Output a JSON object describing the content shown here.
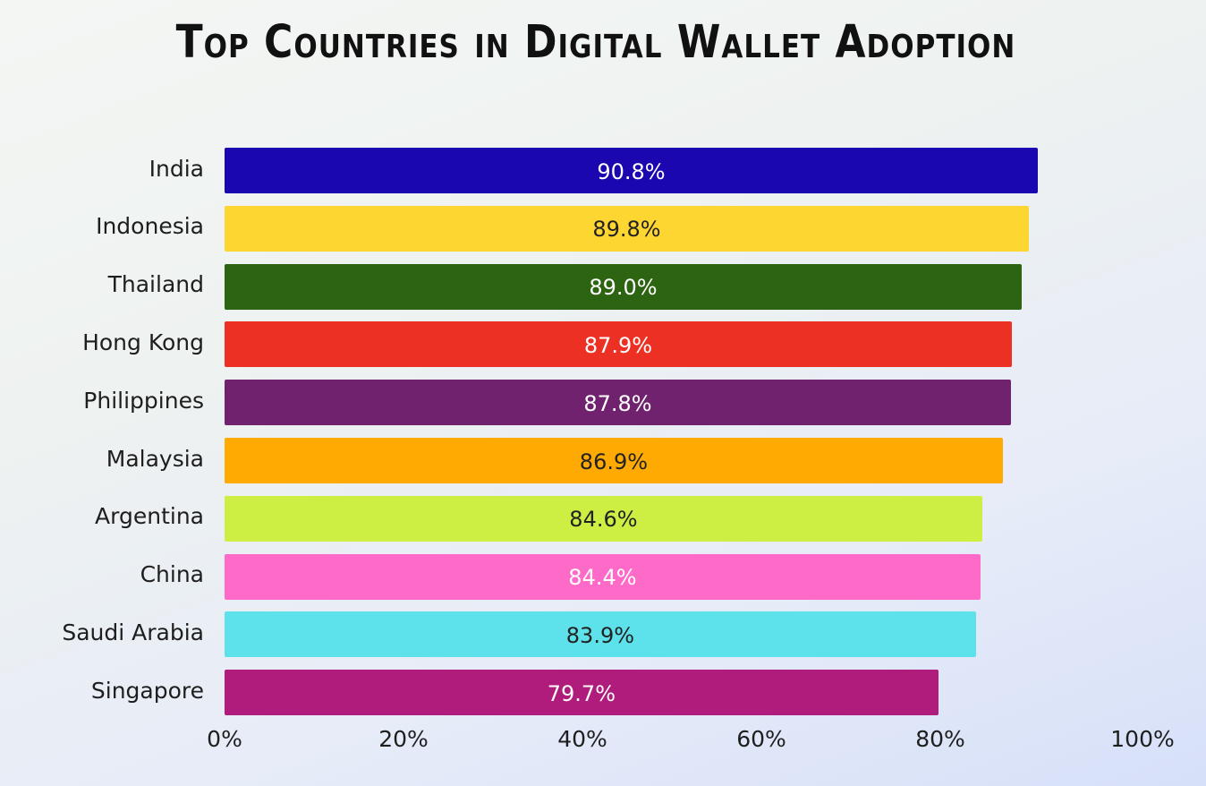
{
  "chart_data": {
    "type": "bar",
    "orientation": "horizontal",
    "title": "Top Countries in Digital Wallet Adoption",
    "categories": [
      "India",
      "Indonesia",
      "Thailand",
      "Hong Kong",
      "Philippines",
      "Malaysia",
      "Argentina",
      "China",
      "Saudi Arabia",
      "Singapore"
    ],
    "values": [
      90.8,
      89.8,
      89.0,
      87.9,
      87.8,
      86.9,
      84.6,
      84.4,
      83.9,
      79.7
    ],
    "value_labels": [
      "90.8%",
      "89.8%",
      "89.0%",
      "87.9%",
      "87.8%",
      "86.9%",
      "84.6%",
      "84.4%",
      "83.9%",
      "79.7%"
    ],
    "colors": [
      "#1a07b0",
      "#fed631",
      "#2c6412",
      "#ec3024",
      "#70226e",
      "#feaa03",
      "#cdee43",
      "#fe6ac8",
      "#5de1ea",
      "#af1c7c"
    ],
    "label_colors": [
      "#ffffff",
      "#222222",
      "#ffffff",
      "#ffffff",
      "#ffffff",
      "#222222",
      "#222222",
      "#ffffff",
      "#222222",
      "#ffffff"
    ],
    "xticks": [
      "0%",
      "20%",
      "40%",
      "60%",
      "80%",
      "100%"
    ],
    "xtick_values": [
      0,
      20,
      40,
      60,
      80,
      100
    ],
    "xlim": [
      0,
      100
    ],
    "xlabel": "",
    "ylabel": "",
    "grid": false,
    "legend": "none"
  }
}
